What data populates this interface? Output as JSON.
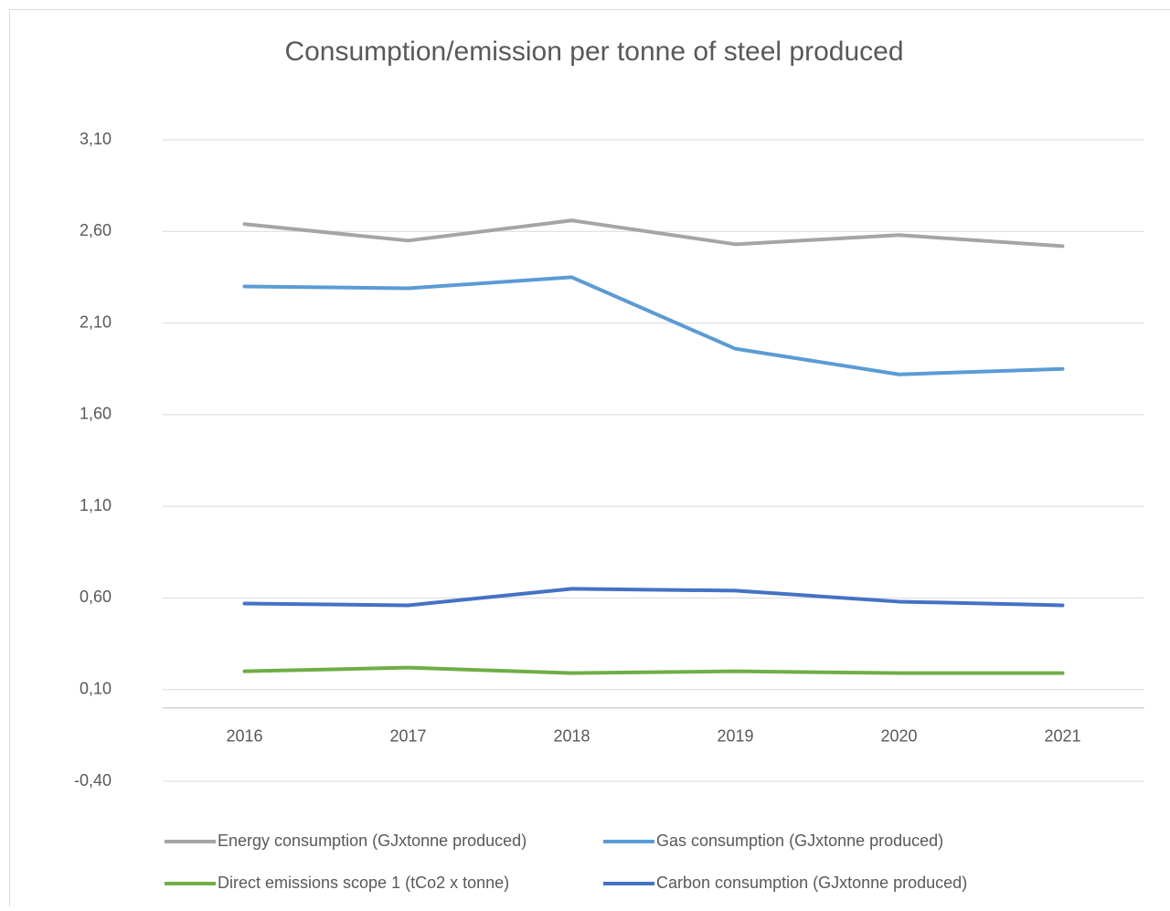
{
  "chart_data": {
    "type": "line",
    "title": "Consumption/emission per tonne of steel produced",
    "categories": [
      "2016",
      "2017",
      "2018",
      "2019",
      "2020",
      "2021"
    ],
    "series": [
      {
        "name": "Energy consumption (GJxtonne produced)",
        "color": "#a5a5a5",
        "values": [
          2.64,
          2.55,
          2.66,
          2.53,
          2.58,
          2.52
        ]
      },
      {
        "name": "Gas consumption (GJxtonne produced)",
        "color": "#5b9bd5",
        "values": [
          2.3,
          2.29,
          2.35,
          1.96,
          1.82,
          1.85
        ]
      },
      {
        "name": "Direct emissions scope 1 (tCo2 x tonne)",
        "color": "#70ad47",
        "values": [
          0.2,
          0.22,
          0.19,
          0.2,
          0.19,
          0.19
        ]
      },
      {
        "name": "Carbon consumption (GJxtonne produced)",
        "color": "#4472c4",
        "values": [
          0.57,
          0.56,
          0.65,
          0.64,
          0.58,
          0.56
        ]
      }
    ],
    "ylim": [
      -0.4,
      3.1
    ],
    "yticks": [
      {
        "value": -0.4,
        "label": "-0,40"
      },
      {
        "value": 0.1,
        "label": "0,10"
      },
      {
        "value": 0.6,
        "label": "0,60"
      },
      {
        "value": 1.1,
        "label": "1,10"
      },
      {
        "value": 1.6,
        "label": "1,60"
      },
      {
        "value": 2.1,
        "label": "2,10"
      },
      {
        "value": 2.6,
        "label": "2,60"
      },
      {
        "value": 3.1,
        "label": "3,10"
      }
    ],
    "grid": true,
    "legend": "bottom"
  }
}
